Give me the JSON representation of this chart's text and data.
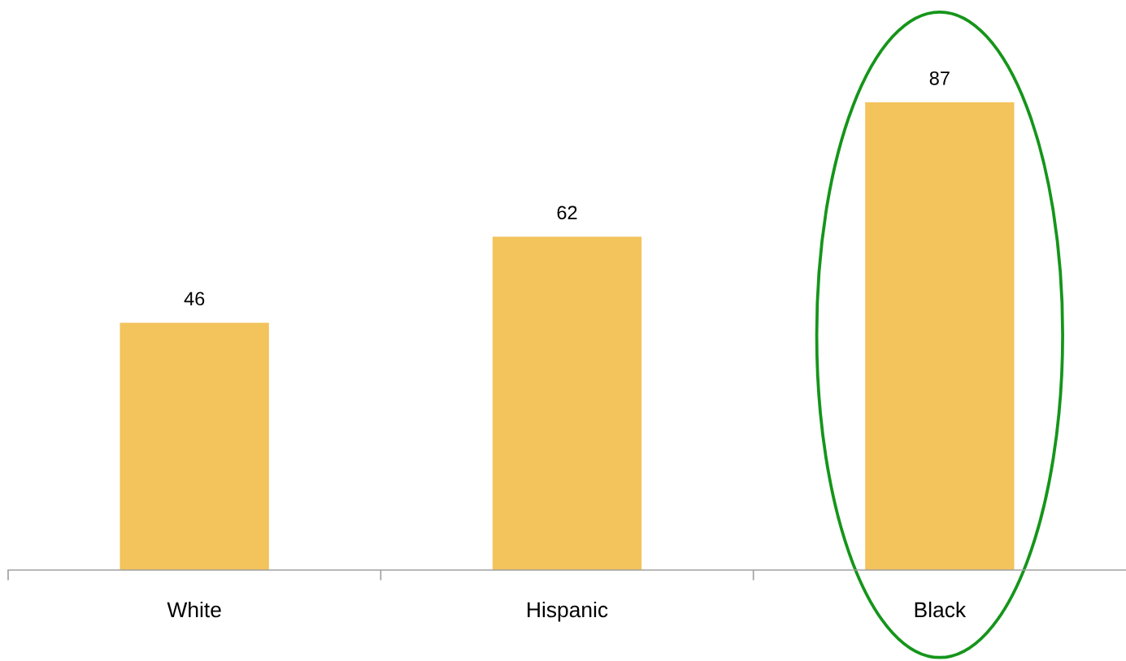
{
  "chart_data": {
    "type": "bar",
    "categories": [
      "White",
      "Hispanic",
      "Black"
    ],
    "values": [
      46,
      62,
      87
    ],
    "color": "#f3c35c",
    "data_labels": true,
    "tick_labels": "x",
    "grid": false,
    "legend": false
  }
}
